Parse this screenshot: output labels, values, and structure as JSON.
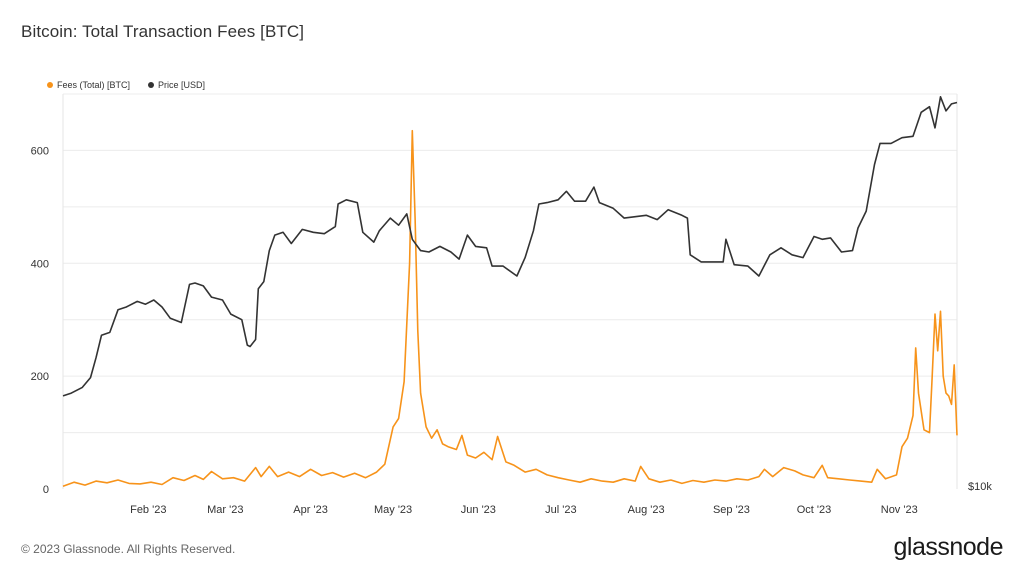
{
  "page": {
    "title": "Bitcoin: Total Transaction Fees [BTC]",
    "footer_copyright": "© 2023 Glassnode. All Rights Reserved.",
    "brand": "glassnode"
  },
  "chart_data": {
    "type": "line",
    "title": "Bitcoin: Total Transaction Fees [BTC]",
    "xlim": [
      "2023-01-01",
      "2023-11-22"
    ],
    "ylim": [
      0,
      700
    ],
    "y_ticks": [
      0,
      200,
      400,
      600
    ],
    "y_tick_labels": [
      "0",
      "200",
      "400",
      "600"
    ],
    "x_ticks": [
      "2023-02-01",
      "2023-03-01",
      "2023-04-01",
      "2023-05-01",
      "2023-06-01",
      "2023-07-01",
      "2023-08-01",
      "2023-09-01",
      "2023-10-01",
      "2023-11-01"
    ],
    "x_tick_labels": [
      "Feb '23",
      "Mar '23",
      "Apr '23",
      "May '23",
      "Jun '23",
      "Jul '23",
      "Aug '23",
      "Sep '23",
      "Oct '23",
      "Nov '23"
    ],
    "right_axis_label": "$10k",
    "grid": "horizontal",
    "legend_position": "top-left",
    "series": [
      {
        "name": "Fees (Total) [BTC]",
        "color": "#f7931a",
        "axis": "left",
        "points": [
          [
            "2023-01-01",
            5
          ],
          [
            "2023-01-05",
            12
          ],
          [
            "2023-01-09",
            7
          ],
          [
            "2023-01-13",
            14
          ],
          [
            "2023-01-17",
            11
          ],
          [
            "2023-01-21",
            16
          ],
          [
            "2023-01-25",
            10
          ],
          [
            "2023-01-29",
            9
          ],
          [
            "2023-02-02",
            12
          ],
          [
            "2023-02-06",
            8
          ],
          [
            "2023-02-10",
            20
          ],
          [
            "2023-02-14",
            15
          ],
          [
            "2023-02-18",
            24
          ],
          [
            "2023-02-21",
            17
          ],
          [
            "2023-02-24",
            31
          ],
          [
            "2023-02-28",
            18
          ],
          [
            "2023-03-04",
            20
          ],
          [
            "2023-03-08",
            14
          ],
          [
            "2023-03-12",
            38
          ],
          [
            "2023-03-14",
            22
          ],
          [
            "2023-03-17",
            40
          ],
          [
            "2023-03-20",
            22
          ],
          [
            "2023-03-24",
            30
          ],
          [
            "2023-03-28",
            22
          ],
          [
            "2023-04-01",
            35
          ],
          [
            "2023-04-05",
            24
          ],
          [
            "2023-04-09",
            29
          ],
          [
            "2023-04-13",
            21
          ],
          [
            "2023-04-17",
            28
          ],
          [
            "2023-04-21",
            20
          ],
          [
            "2023-04-25",
            30
          ],
          [
            "2023-04-28",
            44
          ],
          [
            "2023-05-01",
            110
          ],
          [
            "2023-05-03",
            125
          ],
          [
            "2023-05-05",
            190
          ],
          [
            "2023-05-07",
            400
          ],
          [
            "2023-05-08",
            635
          ],
          [
            "2023-05-09",
            480
          ],
          [
            "2023-05-10",
            280
          ],
          [
            "2023-05-11",
            170
          ],
          [
            "2023-05-13",
            110
          ],
          [
            "2023-05-15",
            90
          ],
          [
            "2023-05-17",
            105
          ],
          [
            "2023-05-19",
            80
          ],
          [
            "2023-05-21",
            75
          ],
          [
            "2023-05-24",
            70
          ],
          [
            "2023-05-26",
            95
          ],
          [
            "2023-05-28",
            60
          ],
          [
            "2023-05-31",
            55
          ],
          [
            "2023-06-03",
            65
          ],
          [
            "2023-06-06",
            52
          ],
          [
            "2023-06-08",
            93
          ],
          [
            "2023-06-11",
            48
          ],
          [
            "2023-06-14",
            42
          ],
          [
            "2023-06-18",
            30
          ],
          [
            "2023-06-22",
            35
          ],
          [
            "2023-06-26",
            25
          ],
          [
            "2023-06-30",
            20
          ],
          [
            "2023-07-04",
            16
          ],
          [
            "2023-07-08",
            12
          ],
          [
            "2023-07-12",
            18
          ],
          [
            "2023-07-16",
            14
          ],
          [
            "2023-07-20",
            12
          ],
          [
            "2023-07-24",
            18
          ],
          [
            "2023-07-28",
            14
          ],
          [
            "2023-07-30",
            40
          ],
          [
            "2023-08-02",
            18
          ],
          [
            "2023-08-06",
            12
          ],
          [
            "2023-08-10",
            16
          ],
          [
            "2023-08-14",
            10
          ],
          [
            "2023-08-18",
            15
          ],
          [
            "2023-08-22",
            12
          ],
          [
            "2023-08-26",
            16
          ],
          [
            "2023-08-30",
            14
          ],
          [
            "2023-09-03",
            18
          ],
          [
            "2023-09-07",
            16
          ],
          [
            "2023-09-11",
            22
          ],
          [
            "2023-09-13",
            35
          ],
          [
            "2023-09-16",
            22
          ],
          [
            "2023-09-20",
            38
          ],
          [
            "2023-09-24",
            32
          ],
          [
            "2023-09-27",
            25
          ],
          [
            "2023-10-01",
            20
          ],
          [
            "2023-10-04",
            42
          ],
          [
            "2023-10-06",
            20
          ],
          [
            "2023-10-10",
            18
          ],
          [
            "2023-10-14",
            16
          ],
          [
            "2023-10-18",
            14
          ],
          [
            "2023-10-22",
            12
          ],
          [
            "2023-10-24",
            35
          ],
          [
            "2023-10-27",
            18
          ],
          [
            "2023-10-31",
            25
          ],
          [
            "2023-11-02",
            75
          ],
          [
            "2023-11-04",
            90
          ],
          [
            "2023-11-06",
            130
          ],
          [
            "2023-11-07",
            250
          ],
          [
            "2023-11-08",
            170
          ],
          [
            "2023-11-10",
            105
          ],
          [
            "2023-11-12",
            100
          ],
          [
            "2023-11-13",
            200
          ],
          [
            "2023-11-14",
            310
          ],
          [
            "2023-11-15",
            245
          ],
          [
            "2023-11-16",
            315
          ],
          [
            "2023-11-17",
            200
          ],
          [
            "2023-11-18",
            170
          ],
          [
            "2023-11-19",
            165
          ],
          [
            "2023-11-20",
            150
          ],
          [
            "2023-11-21",
            220
          ],
          [
            "2023-11-22",
            95
          ]
        ]
      },
      {
        "name": "Price [USD]",
        "color": "#333333",
        "axis": "right",
        "points": [
          [
            "2023-01-01",
            16600
          ],
          [
            "2023-01-04",
            16800
          ],
          [
            "2023-01-08",
            17200
          ],
          [
            "2023-01-11",
            17900
          ],
          [
            "2023-01-13",
            19300
          ],
          [
            "2023-01-15",
            20900
          ],
          [
            "2023-01-18",
            21100
          ],
          [
            "2023-01-21",
            22700
          ],
          [
            "2023-01-24",
            22900
          ],
          [
            "2023-01-28",
            23300
          ],
          [
            "2023-01-31",
            23100
          ],
          [
            "2023-02-03",
            23400
          ],
          [
            "2023-02-06",
            22900
          ],
          [
            "2023-02-09",
            22100
          ],
          [
            "2023-02-13",
            21800
          ],
          [
            "2023-02-16",
            24500
          ],
          [
            "2023-02-18",
            24600
          ],
          [
            "2023-02-21",
            24400
          ],
          [
            "2023-02-24",
            23600
          ],
          [
            "2023-02-28",
            23400
          ],
          [
            "2023-03-03",
            22400
          ],
          [
            "2023-03-07",
            22000
          ],
          [
            "2023-03-09",
            20200
          ],
          [
            "2023-03-10",
            20100
          ],
          [
            "2023-03-12",
            20600
          ],
          [
            "2023-03-13",
            24200
          ],
          [
            "2023-03-15",
            24700
          ],
          [
            "2023-03-17",
            26900
          ],
          [
            "2023-03-19",
            28000
          ],
          [
            "2023-03-22",
            28200
          ],
          [
            "2023-03-25",
            27400
          ],
          [
            "2023-03-29",
            28400
          ],
          [
            "2023-04-02",
            28200
          ],
          [
            "2023-04-06",
            28100
          ],
          [
            "2023-04-10",
            28600
          ],
          [
            "2023-04-11",
            30200
          ],
          [
            "2023-04-14",
            30500
          ],
          [
            "2023-04-18",
            30300
          ],
          [
            "2023-04-20",
            28200
          ],
          [
            "2023-04-24",
            27500
          ],
          [
            "2023-04-26",
            28300
          ],
          [
            "2023-04-30",
            29200
          ],
          [
            "2023-05-03",
            28700
          ],
          [
            "2023-05-06",
            29500
          ],
          [
            "2023-05-08",
            27700
          ],
          [
            "2023-05-11",
            26900
          ],
          [
            "2023-05-14",
            26800
          ],
          [
            "2023-05-18",
            27200
          ],
          [
            "2023-05-22",
            26800
          ],
          [
            "2023-05-25",
            26300
          ],
          [
            "2023-05-28",
            28000
          ],
          [
            "2023-05-31",
            27200
          ],
          [
            "2023-06-04",
            27100
          ],
          [
            "2023-06-06",
            25800
          ],
          [
            "2023-06-10",
            25800
          ],
          [
            "2023-06-15",
            25100
          ],
          [
            "2023-06-18",
            26400
          ],
          [
            "2023-06-21",
            28300
          ],
          [
            "2023-06-23",
            30200
          ],
          [
            "2023-06-26",
            30300
          ],
          [
            "2023-06-30",
            30500
          ],
          [
            "2023-07-03",
            31100
          ],
          [
            "2023-07-06",
            30400
          ],
          [
            "2023-07-10",
            30400
          ],
          [
            "2023-07-13",
            31400
          ],
          [
            "2023-07-15",
            30300
          ],
          [
            "2023-07-20",
            29900
          ],
          [
            "2023-07-24",
            29200
          ],
          [
            "2023-07-28",
            29300
          ],
          [
            "2023-08-01",
            29400
          ],
          [
            "2023-08-05",
            29100
          ],
          [
            "2023-08-09",
            29800
          ],
          [
            "2023-08-14",
            29400
          ],
          [
            "2023-08-16",
            29200
          ],
          [
            "2023-08-17",
            26600
          ],
          [
            "2023-08-21",
            26100
          ],
          [
            "2023-08-25",
            26100
          ],
          [
            "2023-08-29",
            26100
          ],
          [
            "2023-08-30",
            27700
          ],
          [
            "2023-09-02",
            25900
          ],
          [
            "2023-09-07",
            25800
          ],
          [
            "2023-09-11",
            25100
          ],
          [
            "2023-09-15",
            26600
          ],
          [
            "2023-09-19",
            27100
          ],
          [
            "2023-09-23",
            26600
          ],
          [
            "2023-09-27",
            26400
          ],
          [
            "2023-10-01",
            27900
          ],
          [
            "2023-10-04",
            27700
          ],
          [
            "2023-10-07",
            27800
          ],
          [
            "2023-10-11",
            26800
          ],
          [
            "2023-10-15",
            26900
          ],
          [
            "2023-10-17",
            28500
          ],
          [
            "2023-10-20",
            29700
          ],
          [
            "2023-10-23",
            33000
          ],
          [
            "2023-10-25",
            34500
          ],
          [
            "2023-10-29",
            34500
          ],
          [
            "2023-11-02",
            34900
          ],
          [
            "2023-11-06",
            35000
          ],
          [
            "2023-11-09",
            36700
          ],
          [
            "2023-11-12",
            37100
          ],
          [
            "2023-11-14",
            35600
          ],
          [
            "2023-11-16",
            37800
          ],
          [
            "2023-11-18",
            36800
          ],
          [
            "2023-11-20",
            37300
          ],
          [
            "2023-11-22",
            37400
          ]
        ]
      }
    ]
  }
}
